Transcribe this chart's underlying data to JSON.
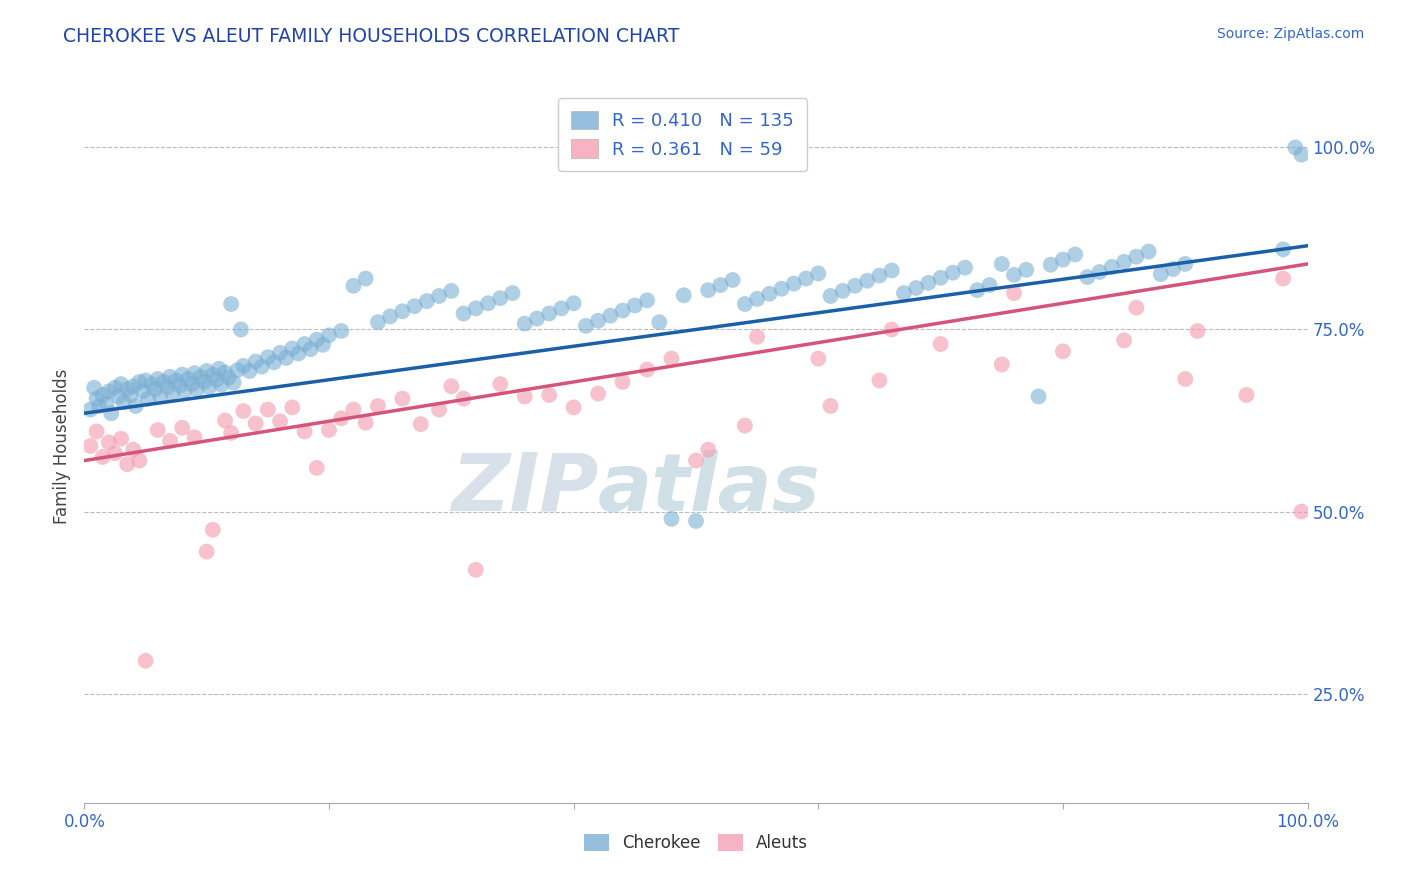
{
  "title": "CHEROKEE VS ALEUT FAMILY HOUSEHOLDS CORRELATION CHART",
  "source_text": "Source: ZipAtlas.com",
  "ylabel": "Family Households",
  "xmin": 0.0,
  "xmax": 1.0,
  "ymin": 0.1,
  "ymax": 1.08,
  "ytick_labels": [
    "25.0%",
    "50.0%",
    "75.0%",
    "100.0%"
  ],
  "ytick_values": [
    0.25,
    0.5,
    0.75,
    1.0
  ],
  "xtick_labels": [
    "0.0%",
    "",
    "",
    "",
    "",
    "100.0%"
  ],
  "xtick_values": [
    0.0,
    0.2,
    0.4,
    0.6,
    0.8,
    1.0
  ],
  "cherokee_R": 0.41,
  "cherokee_N": 135,
  "aleut_R": 0.361,
  "aleut_N": 59,
  "cherokee_color": "#7bafd4",
  "aleut_color": "#f4a0b5",
  "cherokee_line_color": "#1a5fa8",
  "aleut_line_color": "#d4547a",
  "watermark_color": "#c8d8e8",
  "title_color": "#2244aa",
  "source_color": "#3366cc",
  "tick_color": "#3366cc",
  "cherokee_line": [
    0.0,
    0.635,
    1.0,
    0.865
  ],
  "aleut_line": [
    0.0,
    0.57,
    1.0,
    0.84
  ],
  "cherokee_scatter": [
    [
      0.005,
      0.64
    ],
    [
      0.008,
      0.67
    ],
    [
      0.01,
      0.655
    ],
    [
      0.012,
      0.645
    ],
    [
      0.015,
      0.66
    ],
    [
      0.018,
      0.648
    ],
    [
      0.02,
      0.665
    ],
    [
      0.022,
      0.635
    ],
    [
      0.025,
      0.67
    ],
    [
      0.028,
      0.658
    ],
    [
      0.03,
      0.675
    ],
    [
      0.032,
      0.65
    ],
    [
      0.035,
      0.668
    ],
    [
      0.038,
      0.66
    ],
    [
      0.04,
      0.672
    ],
    [
      0.042,
      0.645
    ],
    [
      0.045,
      0.678
    ],
    [
      0.048,
      0.665
    ],
    [
      0.05,
      0.68
    ],
    [
      0.052,
      0.655
    ],
    [
      0.055,
      0.675
    ],
    [
      0.058,
      0.668
    ],
    [
      0.06,
      0.682
    ],
    [
      0.062,
      0.658
    ],
    [
      0.065,
      0.678
    ],
    [
      0.068,
      0.671
    ],
    [
      0.07,
      0.685
    ],
    [
      0.072,
      0.662
    ],
    [
      0.075,
      0.68
    ],
    [
      0.078,
      0.673
    ],
    [
      0.08,
      0.688
    ],
    [
      0.082,
      0.665
    ],
    [
      0.085,
      0.682
    ],
    [
      0.088,
      0.675
    ],
    [
      0.09,
      0.69
    ],
    [
      0.092,
      0.668
    ],
    [
      0.095,
      0.685
    ],
    [
      0.098,
      0.678
    ],
    [
      0.1,
      0.693
    ],
    [
      0.102,
      0.671
    ],
    [
      0.105,
      0.688
    ],
    [
      0.108,
      0.681
    ],
    [
      0.11,
      0.696
    ],
    [
      0.112,
      0.674
    ],
    [
      0.115,
      0.691
    ],
    [
      0.118,
      0.684
    ],
    [
      0.12,
      0.785
    ],
    [
      0.122,
      0.677
    ],
    [
      0.125,
      0.694
    ],
    [
      0.128,
      0.75
    ],
    [
      0.13,
      0.7
    ],
    [
      0.135,
      0.693
    ],
    [
      0.14,
      0.706
    ],
    [
      0.145,
      0.699
    ],
    [
      0.15,
      0.712
    ],
    [
      0.155,
      0.705
    ],
    [
      0.16,
      0.718
    ],
    [
      0.165,
      0.711
    ],
    [
      0.17,
      0.724
    ],
    [
      0.175,
      0.717
    ],
    [
      0.18,
      0.73
    ],
    [
      0.185,
      0.723
    ],
    [
      0.19,
      0.736
    ],
    [
      0.195,
      0.729
    ],
    [
      0.2,
      0.742
    ],
    [
      0.21,
      0.748
    ],
    [
      0.22,
      0.81
    ],
    [
      0.23,
      0.82
    ],
    [
      0.24,
      0.76
    ],
    [
      0.25,
      0.768
    ],
    [
      0.26,
      0.775
    ],
    [
      0.27,
      0.782
    ],
    [
      0.28,
      0.789
    ],
    [
      0.29,
      0.796
    ],
    [
      0.3,
      0.803
    ],
    [
      0.31,
      0.772
    ],
    [
      0.32,
      0.779
    ],
    [
      0.33,
      0.786
    ],
    [
      0.34,
      0.793
    ],
    [
      0.35,
      0.8
    ],
    [
      0.36,
      0.758
    ],
    [
      0.37,
      0.765
    ],
    [
      0.38,
      0.772
    ],
    [
      0.39,
      0.779
    ],
    [
      0.4,
      0.786
    ],
    [
      0.41,
      0.755
    ],
    [
      0.42,
      0.762
    ],
    [
      0.43,
      0.769
    ],
    [
      0.44,
      0.776
    ],
    [
      0.45,
      0.783
    ],
    [
      0.46,
      0.79
    ],
    [
      0.47,
      0.76
    ],
    [
      0.48,
      0.49
    ],
    [
      0.49,
      0.797
    ],
    [
      0.5,
      0.487
    ],
    [
      0.51,
      0.804
    ],
    [
      0.52,
      0.811
    ],
    [
      0.53,
      0.818
    ],
    [
      0.54,
      0.785
    ],
    [
      0.55,
      0.792
    ],
    [
      0.56,
      0.799
    ],
    [
      0.57,
      0.806
    ],
    [
      0.58,
      0.813
    ],
    [
      0.59,
      0.82
    ],
    [
      0.6,
      0.827
    ],
    [
      0.61,
      0.796
    ],
    [
      0.62,
      0.803
    ],
    [
      0.63,
      0.81
    ],
    [
      0.64,
      0.817
    ],
    [
      0.65,
      0.824
    ],
    [
      0.66,
      0.831
    ],
    [
      0.67,
      0.8
    ],
    [
      0.68,
      0.807
    ],
    [
      0.69,
      0.814
    ],
    [
      0.7,
      0.821
    ],
    [
      0.71,
      0.828
    ],
    [
      0.72,
      0.835
    ],
    [
      0.73,
      0.804
    ],
    [
      0.74,
      0.811
    ],
    [
      0.75,
      0.84
    ],
    [
      0.76,
      0.825
    ],
    [
      0.77,
      0.832
    ],
    [
      0.78,
      0.658
    ],
    [
      0.79,
      0.839
    ],
    [
      0.8,
      0.846
    ],
    [
      0.81,
      0.853
    ],
    [
      0.82,
      0.822
    ],
    [
      0.83,
      0.829
    ],
    [
      0.84,
      0.836
    ],
    [
      0.85,
      0.843
    ],
    [
      0.86,
      0.85
    ],
    [
      0.87,
      0.857
    ],
    [
      0.88,
      0.826
    ],
    [
      0.89,
      0.833
    ],
    [
      0.9,
      0.84
    ],
    [
      0.98,
      0.86
    ],
    [
      0.99,
      1.0
    ],
    [
      0.995,
      0.99
    ]
  ],
  "aleut_scatter": [
    [
      0.005,
      0.59
    ],
    [
      0.01,
      0.61
    ],
    [
      0.015,
      0.575
    ],
    [
      0.02,
      0.595
    ],
    [
      0.025,
      0.58
    ],
    [
      0.03,
      0.6
    ],
    [
      0.035,
      0.565
    ],
    [
      0.04,
      0.585
    ],
    [
      0.045,
      0.57
    ],
    [
      0.05,
      0.295
    ],
    [
      0.06,
      0.612
    ],
    [
      0.07,
      0.597
    ],
    [
      0.08,
      0.615
    ],
    [
      0.09,
      0.602
    ],
    [
      0.1,
      0.445
    ],
    [
      0.105,
      0.475
    ],
    [
      0.115,
      0.625
    ],
    [
      0.12,
      0.608
    ],
    [
      0.13,
      0.638
    ],
    [
      0.14,
      0.621
    ],
    [
      0.15,
      0.64
    ],
    [
      0.16,
      0.624
    ],
    [
      0.17,
      0.643
    ],
    [
      0.18,
      0.61
    ],
    [
      0.19,
      0.56
    ],
    [
      0.2,
      0.612
    ],
    [
      0.21,
      0.628
    ],
    [
      0.22,
      0.64
    ],
    [
      0.23,
      0.622
    ],
    [
      0.24,
      0.645
    ],
    [
      0.26,
      0.655
    ],
    [
      0.275,
      0.62
    ],
    [
      0.29,
      0.64
    ],
    [
      0.3,
      0.672
    ],
    [
      0.31,
      0.655
    ],
    [
      0.32,
      0.42
    ],
    [
      0.34,
      0.675
    ],
    [
      0.36,
      0.658
    ],
    [
      0.38,
      0.66
    ],
    [
      0.4,
      0.643
    ],
    [
      0.42,
      0.662
    ],
    [
      0.44,
      0.678
    ],
    [
      0.46,
      0.695
    ],
    [
      0.48,
      0.71
    ],
    [
      0.5,
      0.57
    ],
    [
      0.51,
      0.585
    ],
    [
      0.54,
      0.618
    ],
    [
      0.55,
      0.74
    ],
    [
      0.6,
      0.71
    ],
    [
      0.61,
      0.645
    ],
    [
      0.65,
      0.68
    ],
    [
      0.66,
      0.75
    ],
    [
      0.7,
      0.73
    ],
    [
      0.75,
      0.702
    ],
    [
      0.76,
      0.8
    ],
    [
      0.8,
      0.72
    ],
    [
      0.85,
      0.735
    ],
    [
      0.86,
      0.78
    ],
    [
      0.9,
      0.682
    ],
    [
      0.91,
      0.748
    ],
    [
      0.95,
      0.66
    ],
    [
      0.98,
      0.82
    ],
    [
      0.995,
      0.5
    ]
  ]
}
